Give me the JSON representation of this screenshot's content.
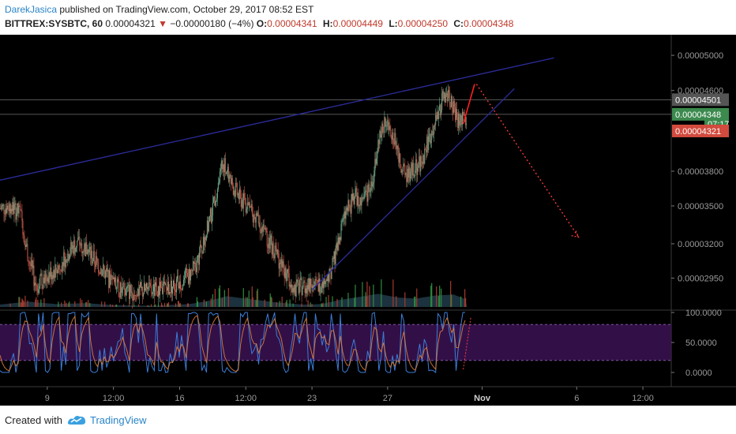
{
  "header": {
    "author": "DarekJasica",
    "published": "published on TradingView.com, October 29, 2017 08:52 EST",
    "symbol": "BITTREX:SYSBTC, 60",
    "last": "0.00004321",
    "change": "−0.00000180 (−4%)",
    "open_label": "O:",
    "open": "0.00004341",
    "high_label": "H:",
    "high": "0.00004449",
    "low_label": "L:",
    "low": "0.00004250",
    "close_label": "C:",
    "close": "0.00004348"
  },
  "chart_data": {
    "type": "candlestick",
    "symbol": "BITTREX:SYSBTC",
    "interval": "60",
    "y_scale": "log",
    "ylim": [
      2.75e-05,
      5.25e-05
    ],
    "price_ticks": [
      "0.00005000",
      "0.00004600",
      "0.00003800",
      "0.00003500",
      "0.00003200",
      "0.00002950"
    ],
    "price_tick_values": [
      5e-05,
      4.6e-05,
      3.8e-05,
      3.5e-05,
      3.2e-05,
      2.95e-05
    ],
    "axis_badges": [
      {
        "label": "0.00004501",
        "value": 4.501e-05,
        "color": "#555555"
      },
      {
        "label": "0.00004348",
        "value": 4.348e-05,
        "color": "#3c8a4e"
      },
      {
        "label": "07:17",
        "value": 4.25e-05,
        "color": "#3c8a4e"
      },
      {
        "label": "0.00004321",
        "value": 4.18e-05,
        "color": "#d24b3e"
      }
    ],
    "time_ticks": [
      "9",
      "12:00",
      "16",
      "12:00",
      "23",
      "27",
      "Nov",
      "6",
      "12:00"
    ],
    "time_tick_days": [
      9,
      12.5,
      16,
      19.5,
      23,
      27,
      32,
      37,
      40.5
    ],
    "xlim": [
      6.5,
      42
    ],
    "price_path": [
      [
        6.5,
        3.48e-05
      ],
      [
        7.0,
        3.5e-05
      ],
      [
        7.6,
        3.43e-05
      ],
      [
        8.0,
        3.1e-05
      ],
      [
        8.4,
        2.9e-05
      ],
      [
        9.0,
        2.97e-05
      ],
      [
        9.5,
        3.02e-05
      ],
      [
        10.1,
        3.13e-05
      ],
      [
        10.6,
        3.22e-05
      ],
      [
        11.1,
        3.15e-05
      ],
      [
        11.6,
        3.06e-05
      ],
      [
        12.3,
        2.94e-05
      ],
      [
        12.9,
        2.86e-05
      ],
      [
        13.5,
        2.86e-05
      ],
      [
        14.5,
        2.86e-05
      ],
      [
        15.3,
        2.88e-05
      ],
      [
        16.1,
        2.92e-05
      ],
      [
        16.8,
        3.02e-05
      ],
      [
        17.3,
        3.22e-05
      ],
      [
        17.7,
        3.45e-05
      ],
      [
        18.0,
        3.68e-05
      ],
      [
        18.3,
        3.88e-05
      ],
      [
        18.7,
        3.7e-05
      ],
      [
        19.2,
        3.56e-05
      ],
      [
        19.8,
        3.46e-05
      ],
      [
        20.4,
        3.3e-05
      ],
      [
        21.0,
        3.16e-05
      ],
      [
        21.6,
        2.98e-05
      ],
      [
        22.1,
        2.88e-05
      ],
      [
        22.7,
        2.9e-05
      ],
      [
        23.3,
        2.9e-05
      ],
      [
        23.9,
        2.96e-05
      ],
      [
        24.4,
        3.22e-05
      ],
      [
        24.8,
        3.45e-05
      ],
      [
        25.3,
        3.58e-05
      ],
      [
        25.7,
        3.56e-05
      ],
      [
        26.1,
        3.66e-05
      ],
      [
        26.4,
        3.92e-05
      ],
      [
        26.7,
        4.2e-05
      ],
      [
        27.0,
        4.3e-05
      ],
      [
        27.5,
        4e-05
      ],
      [
        27.9,
        3.76e-05
      ],
      [
        28.3,
        3.8e-05
      ],
      [
        28.8,
        3.88e-05
      ],
      [
        29.2,
        4.12e-05
      ],
      [
        29.6,
        4.3e-05
      ],
      [
        30.0,
        4.55e-05
      ],
      [
        30.4,
        4.5e-05
      ],
      [
        30.8,
        4.25e-05
      ],
      [
        31.2,
        4.32e-05
      ]
    ],
    "volume_profile": [
      [
        6.5,
        0.1
      ],
      [
        8.0,
        0.22
      ],
      [
        9.5,
        0.12
      ],
      [
        11.0,
        0.16
      ],
      [
        12.5,
        0.08
      ],
      [
        14.5,
        0.05
      ],
      [
        16.5,
        0.12
      ],
      [
        17.5,
        0.25
      ],
      [
        18.5,
        0.45
      ],
      [
        19.5,
        0.35
      ],
      [
        21.0,
        0.2
      ],
      [
        22.5,
        0.1
      ],
      [
        23.5,
        0.12
      ],
      [
        24.5,
        0.3
      ],
      [
        25.5,
        0.42
      ],
      [
        26.5,
        0.55
      ],
      [
        27.5,
        0.4
      ],
      [
        28.5,
        0.35
      ],
      [
        29.5,
        0.48
      ],
      [
        30.5,
        0.52
      ],
      [
        31.2,
        0.3
      ]
    ],
    "drawings": [
      {
        "kind": "trendline",
        "color": "#2c2c9c",
        "points": [
          [
            6.5,
            3.72e-05
          ],
          [
            35.8,
            4.97e-05
          ]
        ]
      },
      {
        "kind": "trendline",
        "color": "#2c2c9c",
        "points": [
          [
            23.0,
            2.87e-05
          ],
          [
            33.7,
            4.62e-05
          ]
        ]
      },
      {
        "kind": "line",
        "color": "#ff1f1f",
        "points": [
          [
            31.0,
            4.25e-05
          ],
          [
            31.6,
            4.67e-05
          ]
        ]
      },
      {
        "kind": "dotted-arrow",
        "color": "#ff3b3b",
        "points": [
          [
            31.7,
            4.67e-05
          ],
          [
            37.1,
            3.25e-05
          ]
        ]
      },
      {
        "kind": "horizontal",
        "color": "#707070",
        "value": 4.501e-05
      },
      {
        "kind": "horizontal",
        "color": "#707070",
        "value": 4.348e-05
      }
    ],
    "stoch_rsi": {
      "ticks": [
        "100.0000",
        "50.0000",
        "0.0000"
      ],
      "tick_values": [
        100,
        50,
        0
      ],
      "band": [
        20,
        80
      ],
      "band_color": "#3b1354"
    }
  },
  "footer": {
    "created_with": "Created with",
    "brand": "TradingView"
  }
}
